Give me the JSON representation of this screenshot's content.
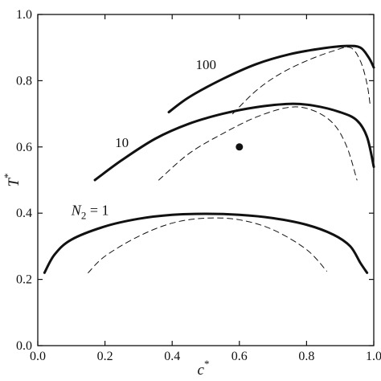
{
  "chart_data": {
    "type": "line",
    "xlabel": "c",
    "xlabel_sup": "*",
    "ylabel": "T",
    "ylabel_sup": "*",
    "xlim": [
      0.0,
      1.0
    ],
    "ylim": [
      0.0,
      1.0
    ],
    "xticks": [
      "0.0",
      "0.2",
      "0.4",
      "0.6",
      "0.8",
      "1.0"
    ],
    "yticks": [
      "0.0",
      "0.2",
      "0.4",
      "0.6",
      "0.8",
      "1.0"
    ],
    "grid": false,
    "legend": "none",
    "series": [
      {
        "style": "solid",
        "points": [
          [
            0.02,
            0.22
          ],
          [
            0.05,
            0.275
          ],
          [
            0.1,
            0.32
          ],
          [
            0.2,
            0.36
          ],
          [
            0.3,
            0.383
          ],
          [
            0.4,
            0.395
          ],
          [
            0.5,
            0.398
          ],
          [
            0.6,
            0.395
          ],
          [
            0.7,
            0.385
          ],
          [
            0.8,
            0.365
          ],
          [
            0.88,
            0.335
          ],
          [
            0.93,
            0.3
          ],
          [
            0.96,
            0.25
          ],
          [
            0.98,
            0.22
          ]
        ]
      },
      {
        "style": "dashed",
        "points": [
          [
            0.15,
            0.22
          ],
          [
            0.2,
            0.27
          ],
          [
            0.3,
            0.33
          ],
          [
            0.4,
            0.37
          ],
          [
            0.5,
            0.385
          ],
          [
            0.6,
            0.38
          ],
          [
            0.7,
            0.35
          ],
          [
            0.8,
            0.29
          ],
          [
            0.86,
            0.225
          ]
        ]
      },
      {
        "style": "solid",
        "points": [
          [
            0.17,
            0.5
          ],
          [
            0.25,
            0.56
          ],
          [
            0.35,
            0.625
          ],
          [
            0.45,
            0.67
          ],
          [
            0.55,
            0.7
          ],
          [
            0.65,
            0.72
          ],
          [
            0.75,
            0.73
          ],
          [
            0.82,
            0.725
          ],
          [
            0.9,
            0.705
          ],
          [
            0.95,
            0.68
          ],
          [
            0.98,
            0.63
          ],
          [
            1.0,
            0.54
          ]
        ]
      },
      {
        "style": "dashed",
        "points": [
          [
            0.36,
            0.5
          ],
          [
            0.45,
            0.58
          ],
          [
            0.55,
            0.64
          ],
          [
            0.65,
            0.69
          ],
          [
            0.75,
            0.72
          ],
          [
            0.82,
            0.71
          ],
          [
            0.88,
            0.67
          ],
          [
            0.92,
            0.6
          ],
          [
            0.95,
            0.5
          ]
        ]
      },
      {
        "style": "solid",
        "points": [
          [
            0.39,
            0.705
          ],
          [
            0.45,
            0.75
          ],
          [
            0.55,
            0.805
          ],
          [
            0.65,
            0.85
          ],
          [
            0.75,
            0.88
          ],
          [
            0.85,
            0.898
          ],
          [
            0.92,
            0.905
          ],
          [
            0.96,
            0.9
          ],
          [
            0.985,
            0.87
          ],
          [
            1.0,
            0.84
          ]
        ]
      },
      {
        "style": "dashed",
        "points": [
          [
            0.58,
            0.7
          ],
          [
            0.65,
            0.77
          ],
          [
            0.72,
            0.82
          ],
          [
            0.8,
            0.86
          ],
          [
            0.88,
            0.89
          ],
          [
            0.93,
            0.9
          ],
          [
            0.96,
            0.86
          ],
          [
            0.98,
            0.79
          ],
          [
            0.99,
            0.72
          ]
        ]
      }
    ],
    "point_marker": {
      "x": 0.6,
      "y": 0.6
    },
    "annotations": [
      {
        "text": "100",
        "x": 0.47,
        "y": 0.835
      },
      {
        "text": "10",
        "x": 0.23,
        "y": 0.6
      },
      {
        "text_main": "N",
        "text_sub": "2",
        "text_rest": " = 1",
        "x": 0.1,
        "y": 0.395
      }
    ]
  }
}
